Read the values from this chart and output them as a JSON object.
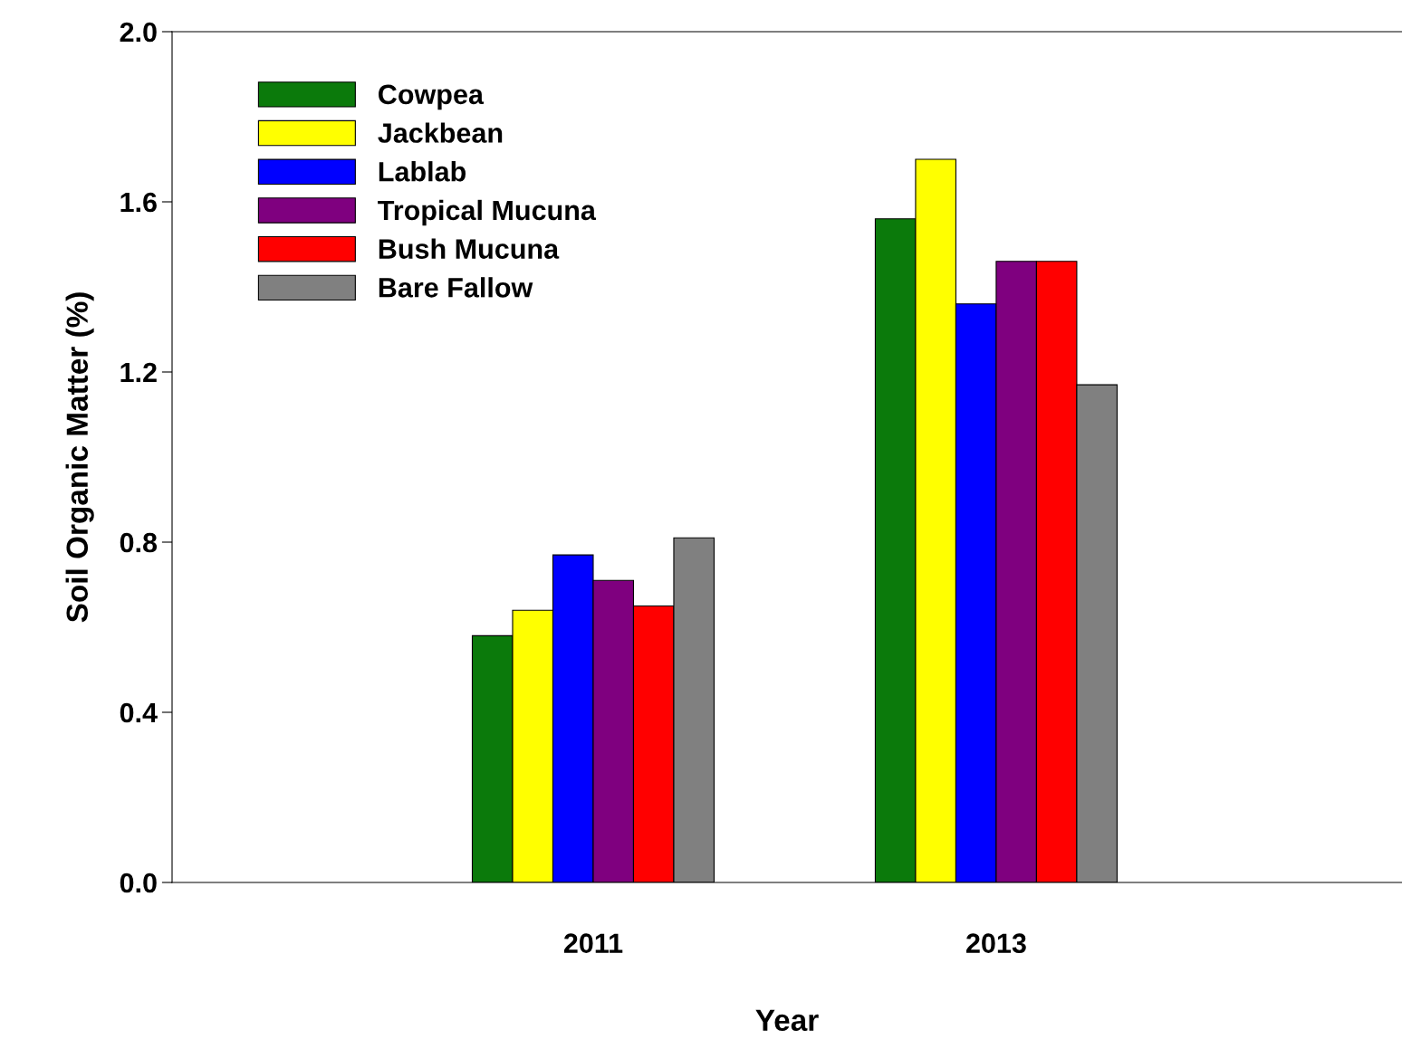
{
  "chart_data": {
    "type": "bar",
    "xlabel": "Year",
    "ylabel": "Soil Organic Matter (%)",
    "categories": [
      "2011",
      "2013"
    ],
    "series": [
      {
        "name": "Cowpea",
        "color": "#0b7a0b",
        "values": [
          0.58,
          1.56
        ]
      },
      {
        "name": "Jackbean",
        "color": "#ffff00",
        "values": [
          0.64,
          1.7
        ]
      },
      {
        "name": "Lablab",
        "color": "#0000ff",
        "values": [
          0.77,
          1.36
        ]
      },
      {
        "name": "Tropical Mucuna",
        "color": "#7f007f",
        "values": [
          0.71,
          1.46
        ]
      },
      {
        "name": "Bush Mucuna",
        "color": "#ff0000",
        "values": [
          0.65,
          1.46
        ]
      },
      {
        "name": "Bare Fallow",
        "color": "#808080",
        "values": [
          0.81,
          1.17
        ]
      }
    ],
    "ylim": [
      0,
      2.0
    ],
    "yticks": [
      {
        "value": 0,
        "label": "0.0"
      },
      0.4,
      0.8,
      1.2,
      1.6,
      {
        "value": 2,
        "label": "2.0"
      }
    ],
    "legend": "top left",
    "grid": false
  }
}
